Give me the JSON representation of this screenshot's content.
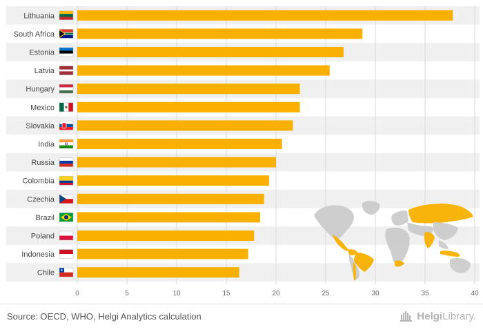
{
  "chart_data": {
    "type": "bar",
    "orientation": "horizontal",
    "categories": [
      "Lithuania",
      "South Africa",
      "Estonia",
      "Latvia",
      "Hungary",
      "Mexico",
      "Slovakia",
      "India",
      "Russia",
      "Colombia",
      "Czechia",
      "Brazil",
      "Poland",
      "Indonesia",
      "Chile"
    ],
    "values": [
      37.8,
      28.7,
      26.8,
      25.4,
      22.4,
      22.4,
      21.7,
      20.6,
      20.0,
      19.3,
      18.8,
      18.4,
      17.8,
      17.2,
      16.3
    ],
    "xlim": [
      0,
      40
    ],
    "xticks": [
      0,
      5,
      10,
      15,
      20,
      25,
      30,
      35,
      40
    ],
    "grid": true,
    "bar_color": "#f9b000",
    "band_color": "#f0f0f0",
    "flags": [
      "lithuania-flag",
      "south-africa-flag",
      "estonia-flag",
      "latvia-flag",
      "hungary-flag",
      "mexico-flag",
      "slovakia-flag",
      "india-flag",
      "russia-flag",
      "colombia-flag",
      "czechia-flag",
      "brazil-flag",
      "poland-flag",
      "indonesia-flag",
      "chile-flag"
    ]
  },
  "footer": {
    "source": "Source: OECD, WHO, Helgi Analytics calculation",
    "brand_bold": "Helgi",
    "brand_light": "Library."
  },
  "map": {
    "highlight_color": "#f9b000",
    "base_color": "#cccccc",
    "icon": "world-map-icon"
  }
}
